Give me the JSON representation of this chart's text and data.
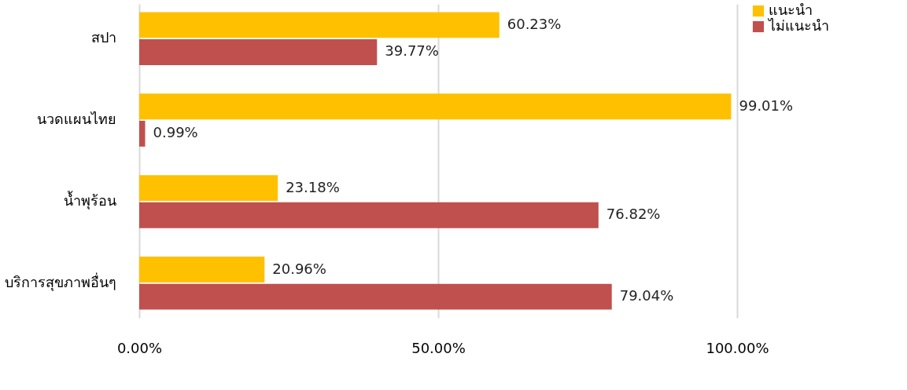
{
  "chart_data": {
    "type": "bar",
    "orientation": "horizontal",
    "categories": [
      "สปา",
      "นวดแผนไทย",
      "น้ำพุร้อน",
      "บริการสุขภาพอื่นๆ"
    ],
    "series": [
      {
        "name": "แนะนำ",
        "color": "#ffc000",
        "values": [
          60.23,
          99.01,
          23.18,
          20.96
        ],
        "value_labels": [
          "60.23%",
          "99.01%",
          "23.18%",
          "20.96%"
        ]
      },
      {
        "name": "ไม่แนะนำ",
        "color": "#c0504d",
        "values": [
          39.77,
          0.99,
          76.82,
          79.04
        ],
        "value_labels": [
          "39.77%",
          "0.99%",
          "76.82%",
          "79.04%"
        ]
      }
    ],
    "xlim": [
      0,
      100
    ],
    "xticks": [
      {
        "value": 0,
        "label": "0.00%"
      },
      {
        "value": 50,
        "label": "50.00%"
      },
      {
        "value": 100,
        "label": "100.00%"
      }
    ],
    "grid": "x",
    "legend": "right"
  }
}
